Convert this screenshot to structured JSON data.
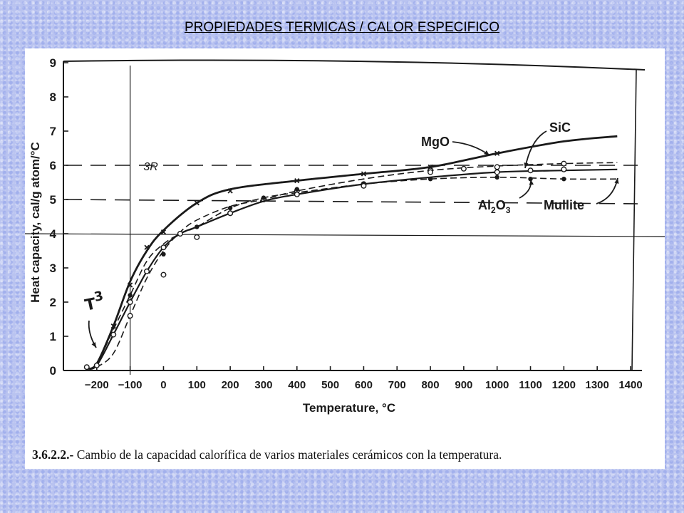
{
  "page_title": "PROPIEDADES TERMICAS / CALOR ESPECIFICO",
  "caption": {
    "number": "3.6.2.2.-",
    "text": "Cambio de la capacidad calorífica de varios materiales cerámicos con la temperatura."
  },
  "chart_data": {
    "type": "line",
    "title": "",
    "xlabel": "Temperature, °C",
    "ylabel": "Heat capacity, cal/g atom/°C",
    "xlim": [
      -300,
      1400
    ],
    "ylim": [
      0,
      9
    ],
    "x_ticks": [
      -200,
      -100,
      0,
      100,
      200,
      300,
      400,
      500,
      600,
      700,
      800,
      900,
      1000,
      1100,
      1200,
      1300,
      1400
    ],
    "x_tick_labels": [
      "−200",
      "−100",
      "0",
      "100",
      "200",
      "300",
      "400",
      "500",
      "600",
      "700",
      "800",
      "900",
      "1000",
      "1100",
      "1200",
      "1300",
      "1400"
    ],
    "y_ticks": [
      0,
      1,
      2,
      3,
      4,
      5,
      6,
      7,
      8,
      9
    ],
    "reference_lines": [
      {
        "label": "3R",
        "y": 6.0
      },
      {
        "label": "",
        "y": 5.0
      }
    ],
    "series": [
      {
        "name": "MgO",
        "x": [
          -230,
          -200,
          -150,
          -100,
          -50,
          0,
          100,
          200,
          400,
          600,
          800,
          1000,
          1200,
          1360
        ],
        "y": [
          0.05,
          0.2,
          1.3,
          2.6,
          3.5,
          4.1,
          4.9,
          5.3,
          5.55,
          5.75,
          5.95,
          6.35,
          6.7,
          6.85
        ],
        "markers": [
          [
            -150,
            1.3
          ],
          [
            -100,
            2.5
          ],
          [
            -50,
            3.6
          ],
          [
            0,
            4.05
          ],
          [
            100,
            4.9
          ],
          [
            200,
            5.25
          ],
          [
            400,
            5.55
          ],
          [
            600,
            5.75
          ],
          [
            800,
            5.95
          ],
          [
            1000,
            6.35
          ]
        ]
      },
      {
        "name": "SiC",
        "x": [
          -230,
          -200,
          -150,
          -100,
          -50,
          0,
          50,
          100,
          200,
          300,
          400,
          600,
          800,
          1000,
          1200,
          1360
        ],
        "y": [
          0.05,
          0.1,
          0.5,
          1.6,
          2.7,
          3.5,
          4.05,
          4.4,
          4.8,
          5.0,
          5.25,
          5.6,
          5.85,
          5.98,
          6.05,
          6.08
        ],
        "markers": [
          [
            -100,
            1.6
          ],
          [
            0,
            2.8
          ],
          [
            100,
            3.9
          ],
          [
            200,
            4.6
          ],
          [
            300,
            5.0
          ],
          [
            400,
            5.25
          ],
          [
            600,
            5.45
          ],
          [
            800,
            5.85
          ],
          [
            900,
            5.9
          ],
          [
            1000,
            5.95
          ],
          [
            1200,
            6.05
          ]
        ]
      },
      {
        "name": "Al2O3",
        "x": [
          -230,
          -200,
          -150,
          -100,
          -50,
          0,
          50,
          100,
          200,
          300,
          400,
          600,
          800,
          1000,
          1200,
          1360
        ],
        "y": [
          0.05,
          0.2,
          1.2,
          2.2,
          3.2,
          3.7,
          4.0,
          4.2,
          4.75,
          5.05,
          5.2,
          5.45,
          5.6,
          5.65,
          5.6,
          5.6
        ],
        "markers": [
          [
            -100,
            2.2
          ],
          [
            0,
            3.4
          ],
          [
            100,
            4.2
          ],
          [
            200,
            4.75
          ],
          [
            300,
            5.05
          ],
          [
            400,
            5.3
          ],
          [
            600,
            5.45
          ],
          [
            800,
            5.6
          ],
          [
            1000,
            5.65
          ],
          [
            1100,
            5.6
          ],
          [
            1200,
            5.6
          ]
        ]
      },
      {
        "name": "Mullite",
        "x": [
          -230,
          -200,
          -150,
          -100,
          -50,
          0,
          50,
          100,
          200,
          300,
          400,
          600,
          800,
          1000,
          1200,
          1360
        ],
        "y": [
          0.05,
          0.15,
          1.05,
          2.0,
          2.9,
          3.6,
          4.0,
          4.2,
          4.6,
          4.95,
          5.15,
          5.45,
          5.65,
          5.8,
          5.85,
          5.88
        ],
        "markers": [
          [
            -230,
            0.1
          ],
          [
            -200,
            0.15
          ],
          [
            -150,
            1.05
          ],
          [
            -100,
            2.0
          ],
          [
            -50,
            2.9
          ],
          [
            0,
            3.6
          ],
          [
            50,
            4.0
          ],
          [
            200,
            4.6
          ],
          [
            400,
            5.15
          ],
          [
            600,
            5.4
          ],
          [
            800,
            5.8
          ],
          [
            1000,
            5.8
          ],
          [
            1100,
            5.85
          ],
          [
            1200,
            5.88
          ]
        ]
      }
    ],
    "annotations": [
      {
        "text": "MgO",
        "series": "MgO"
      },
      {
        "text": "SiC",
        "series": "SiC"
      },
      {
        "text": "Al2O3",
        "series": "Al2O3"
      },
      {
        "text": "Mullite",
        "series": "Mullite"
      },
      {
        "text": "3R"
      },
      {
        "text": "T",
        "superscript": "3"
      }
    ],
    "grid": false,
    "legend": "none"
  }
}
